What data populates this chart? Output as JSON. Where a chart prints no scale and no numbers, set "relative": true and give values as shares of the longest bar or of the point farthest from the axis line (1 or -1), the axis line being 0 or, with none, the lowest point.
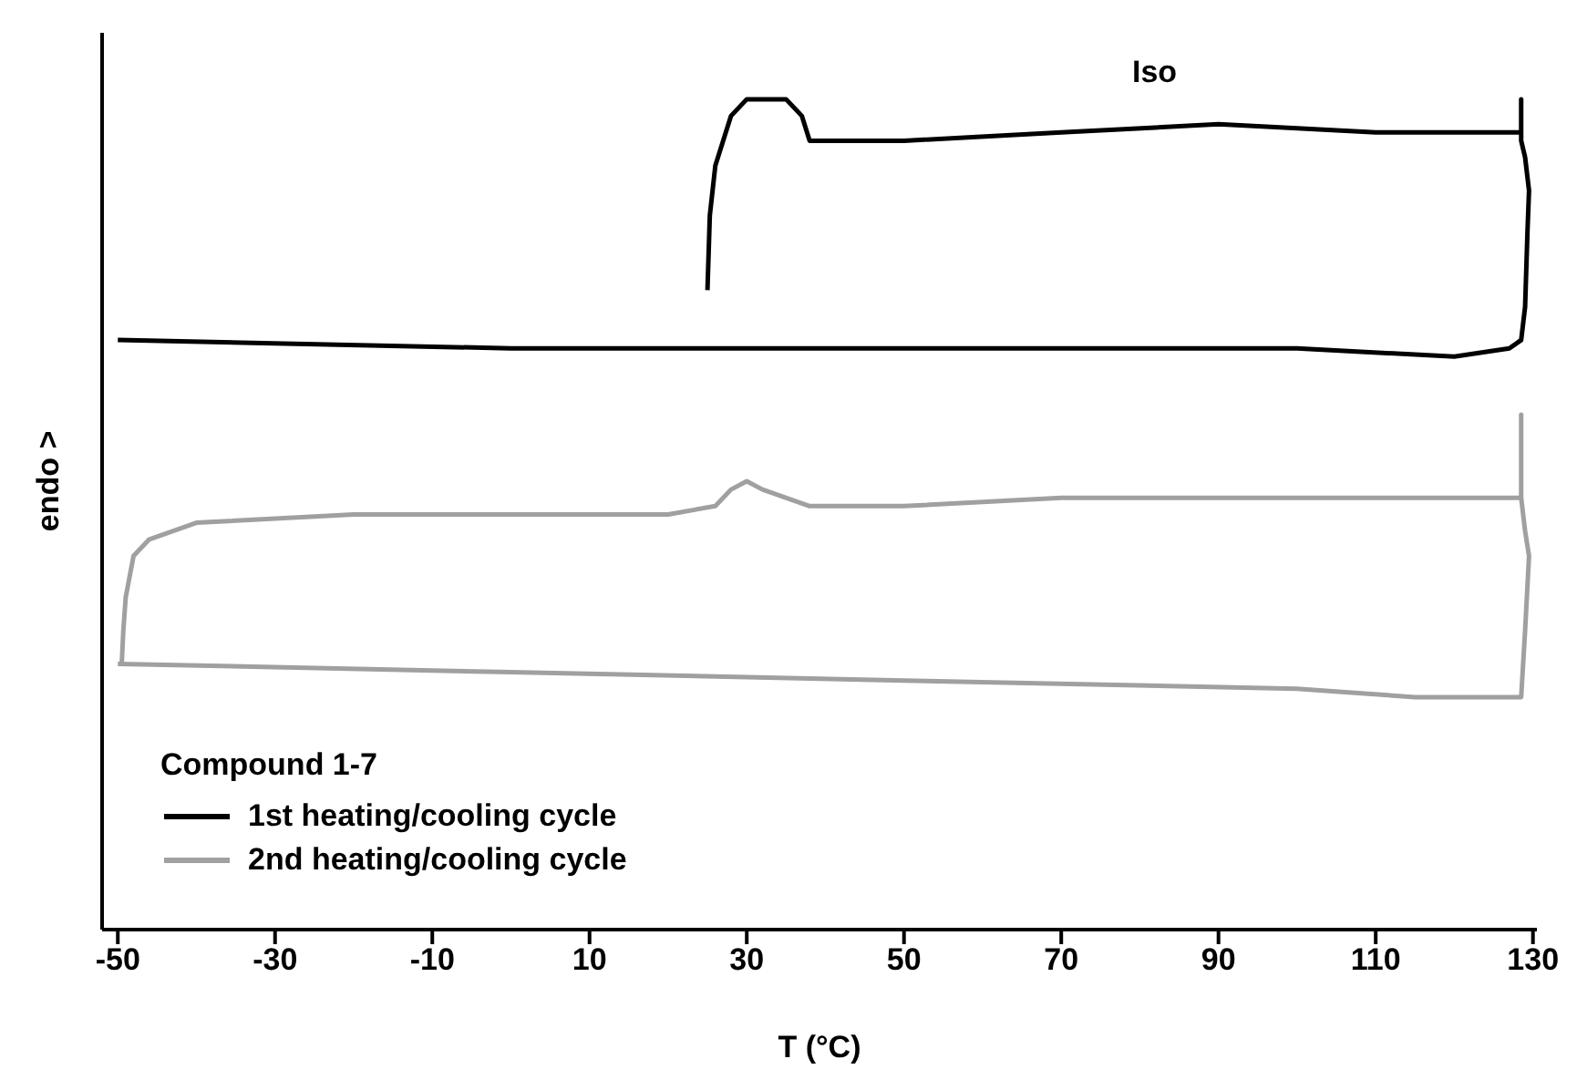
{
  "chart_data": {
    "type": "line",
    "relative": true,
    "xlabel": "T (°C)",
    "ylabel": "endo >",
    "legend_title": "Compound 1-7",
    "annotations": [
      "Iso"
    ],
    "xlim": [
      -52,
      130.5
    ],
    "xticks": [
      -50,
      -30,
      -10,
      10,
      30,
      50,
      70,
      90,
      110,
      130
    ],
    "grid": false,
    "legend": "bottom left",
    "marker": "none",
    "line_style": "solid",
    "series": [
      {
        "name": "1st heating/cooling cycle",
        "color": "#000000",
        "x": [
          -50,
          0,
          50,
          100,
          120,
          127,
          128.5,
          129,
          129.3,
          129.5,
          129,
          128.5,
          128.5,
          128.5,
          128,
          110,
          90,
          70,
          50,
          40,
          38,
          37,
          35,
          32,
          30,
          28,
          26,
          25.3,
          25
        ],
        "values": [
          0.71,
          0.7,
          0.7,
          0.7,
          0.69,
          0.7,
          0.71,
          0.75,
          0.84,
          0.89,
          0.93,
          0.95,
          1.0,
          0.96,
          0.96,
          0.96,
          0.97,
          0.96,
          0.95,
          0.95,
          0.95,
          0.98,
          1.0,
          1.0,
          1.0,
          0.98,
          0.92,
          0.86,
          0.77
        ]
      },
      {
        "name": "2nd heating/cooling cycle",
        "color": "#a0a0a0",
        "x": [
          -50,
          0,
          50,
          100,
          115,
          125,
          128.5,
          129,
          129.5,
          129,
          128.5,
          128.5,
          128.5,
          100,
          70,
          50,
          38,
          32,
          30,
          28,
          26,
          20,
          0,
          -20,
          -40,
          -46,
          -48,
          -49,
          -49.3,
          -49.5
        ],
        "values": [
          0.32,
          0.31,
          0.3,
          0.29,
          0.28,
          0.28,
          0.28,
          0.36,
          0.45,
          0.48,
          0.52,
          0.62,
          0.52,
          0.52,
          0.52,
          0.51,
          0.51,
          0.53,
          0.54,
          0.53,
          0.51,
          0.5,
          0.5,
          0.5,
          0.49,
          0.47,
          0.45,
          0.4,
          0.36,
          0.32
        ]
      }
    ]
  }
}
